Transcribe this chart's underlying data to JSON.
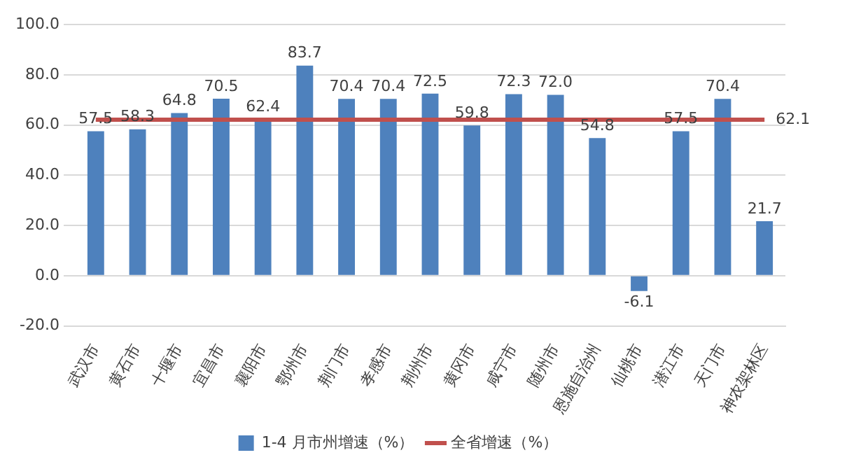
{
  "chart_data": {
    "type": "bar",
    "categories": [
      "武汉市",
      "黄石市",
      "十堰市",
      "宜昌市",
      "襄阳市",
      "鄂州市",
      "荆门市",
      "孝感市",
      "荆州市",
      "黄冈市",
      "咸宁市",
      "随州市",
      "恩施自治州",
      "仙桃市",
      "潜江市",
      "天门市",
      "神农架林区"
    ],
    "series": [
      {
        "name": "1-4 月市州增速（%）",
        "color": "#4e81bd",
        "values": [
          57.5,
          58.3,
          64.8,
          70.5,
          62.4,
          83.7,
          70.4,
          70.4,
          72.5,
          59.8,
          72.3,
          72.0,
          54.8,
          -6.1,
          57.5,
          70.4,
          21.7
        ],
        "value_labels": [
          "57.5",
          "58.3",
          "64.8",
          "70.5",
          "62.4",
          "83.7",
          "70.4",
          "70.4",
          "72.5",
          "59.8",
          "72.3",
          "72.0",
          "54.8",
          "-6.1",
          "57.5",
          "70.4",
          "21.7"
        ]
      },
      {
        "name": "全省增速（%）",
        "type": "line",
        "color": "#c0504d",
        "values": [
          62.1,
          62.1,
          62.1,
          62.1,
          62.1,
          62.1,
          62.1,
          62.1,
          62.1,
          62.1,
          62.1,
          62.1,
          62.1,
          62.1,
          62.1,
          62.1,
          62.1
        ],
        "value_labels": [
          null,
          null,
          null,
          null,
          null,
          null,
          null,
          null,
          null,
          null,
          null,
          null,
          null,
          null,
          null,
          null,
          "62.1"
        ]
      }
    ],
    "ylim": [
      -20,
      100
    ],
    "yticks": [
      {
        "value": -20,
        "label": "-20.0"
      },
      {
        "value": 0,
        "label": "0.0"
      },
      {
        "value": 20,
        "label": "20.0"
      },
      {
        "value": 40,
        "label": "40.0"
      },
      {
        "value": 60,
        "label": "60.0"
      },
      {
        "value": 80,
        "label": "80.0"
      },
      {
        "value": 100,
        "label": "100.0"
      }
    ],
    "grid": "y",
    "legend": "bottom",
    "marker": "none",
    "line_style": "solid"
  }
}
